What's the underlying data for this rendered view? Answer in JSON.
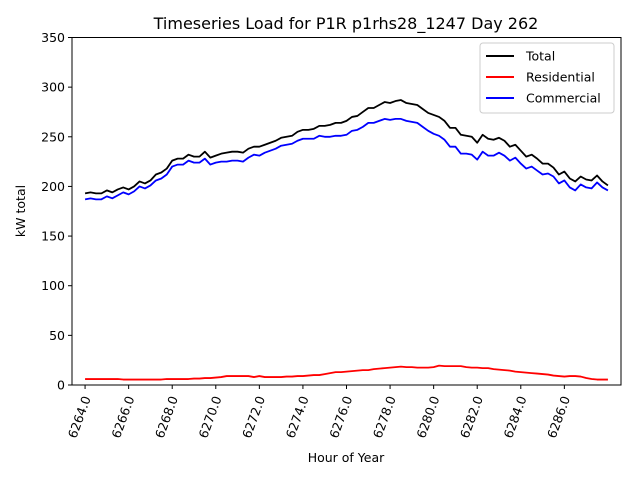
{
  "chart_data": {
    "type": "line",
    "title": "Timeseries Load for P1R p1rhs28_1247  Day 262",
    "xlabel": "Hour of Year",
    "ylabel": "kW total",
    "xlim": [
      6263.4,
      6288.6
    ],
    "ylim": [
      0,
      350
    ],
    "xticks": [
      6264,
      6266,
      6268,
      6270,
      6272,
      6274,
      6276,
      6278,
      6280,
      6282,
      6284,
      6286
    ],
    "xtick_labels": [
      "6264.0",
      "6266.0",
      "6268.0",
      "6270.0",
      "6272.0",
      "6274.0",
      "6276.0",
      "6278.0",
      "6280.0",
      "6282.0",
      "6284.0",
      "6286.0"
    ],
    "yticks": [
      0,
      50,
      100,
      150,
      200,
      250,
      300,
      350
    ],
    "ytick_labels": [
      "0",
      "50",
      "100",
      "150",
      "200",
      "250",
      "300",
      "350"
    ],
    "grid": false,
    "legend_position": "top-right",
    "x_start": 6264,
    "x_step": 0.25,
    "series": [
      {
        "name": "Total",
        "color": "#000000",
        "values": [
          193,
          194,
          193,
          193,
          196,
          194,
          197,
          199,
          197,
          200,
          205,
          203,
          206,
          212,
          214,
          218,
          226,
          228,
          228,
          232,
          230,
          230,
          235,
          229,
          231,
          233,
          234,
          235,
          235,
          234,
          238,
          240,
          240,
          242,
          244,
          246,
          249,
          250,
          251,
          255,
          257,
          257,
          258,
          261,
          261,
          262,
          264,
          264,
          266,
          270,
          271,
          275,
          279,
          279,
          282,
          285,
          284,
          286,
          287,
          284,
          283,
          282,
          278,
          274,
          272,
          270,
          266,
          259,
          259,
          252,
          251,
          250,
          244,
          252,
          248,
          247,
          249,
          246,
          240,
          242,
          236,
          230,
          232,
          228,
          223,
          223,
          219,
          212,
          215,
          208,
          205,
          210,
          207,
          206,
          211,
          205,
          201
        ]
      },
      {
        "name": "Residential",
        "color": "#ff0000",
        "values": [
          6,
          6,
          6,
          6,
          6,
          6,
          6,
          5.5,
          5.5,
          5.5,
          5.5,
          5.5,
          5.5,
          5.5,
          5.5,
          6,
          6,
          6,
          6,
          6,
          6.5,
          6.5,
          7,
          7,
          7.5,
          8,
          9,
          9,
          9,
          9,
          9,
          8,
          9,
          8,
          8,
          8,
          8,
          8.5,
          8.5,
          9,
          9,
          9.5,
          10,
          10,
          11,
          12,
          13,
          13,
          13.5,
          14,
          14.5,
          15,
          15,
          16,
          16.5,
          17,
          17.5,
          18,
          18.5,
          18,
          18,
          17.5,
          17.5,
          17.5,
          18,
          19.5,
          19,
          19,
          19,
          19,
          18,
          17.5,
          17.5,
          17,
          17,
          16,
          15.5,
          15,
          14.5,
          13.5,
          13,
          12.5,
          12,
          11.5,
          11,
          10.5,
          9.5,
          9,
          8.5,
          9,
          9,
          8.5,
          7,
          6,
          5.5,
          5.5,
          5.5
        ]
      },
      {
        "name": "Commercial",
        "color": "#0000ff",
        "values": [
          187,
          188,
          187,
          187,
          190,
          188,
          191,
          194,
          192,
          195,
          200,
          198,
          201,
          206,
          208,
          212,
          220,
          222,
          222,
          226,
          224,
          224,
          228,
          222,
          224,
          225,
          225,
          226,
          226,
          225,
          229,
          232,
          231,
          234,
          236,
          238,
          241,
          242,
          243,
          246,
          248,
          248,
          248,
          251,
          250,
          250,
          251,
          251,
          252,
          256,
          257,
          260,
          264,
          264,
          266,
          268,
          267,
          268,
          268,
          266,
          265,
          264,
          260,
          256,
          253,
          251,
          247,
          240,
          240,
          233,
          233,
          232,
          227,
          235,
          231,
          231,
          234,
          231,
          226,
          229,
          223,
          218,
          220,
          216,
          212,
          213,
          210,
          203,
          206,
          199,
          196,
          202,
          199,
          198,
          204,
          199,
          196
        ]
      }
    ]
  }
}
